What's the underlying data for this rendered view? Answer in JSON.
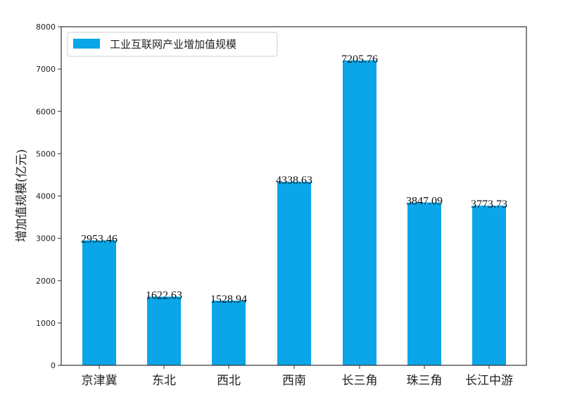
{
  "chart_data": {
    "type": "bar",
    "title": "",
    "xlabel": "",
    "ylabel": "增加值规模(亿元)",
    "categories": [
      "京津冀",
      "东北",
      "西北",
      "西南",
      "长三角",
      "珠三角",
      "长江中游"
    ],
    "values": [
      2953.46,
      1622.63,
      1528.94,
      4338.63,
      7205.76,
      3847.09,
      3773.73
    ],
    "value_labels": [
      "2953.46",
      "1622.63",
      "1528.94",
      "4338.63",
      "7205.76",
      "3847.09",
      "3773.73"
    ],
    "series": [
      {
        "name": "工业互联网产业增加值规模",
        "values": [
          2953.46,
          1622.63,
          1528.94,
          4338.63,
          7205.76,
          3847.09,
          3773.73
        ],
        "color": "#0aa6e8"
      }
    ],
    "ylim": [
      0,
      8000
    ],
    "yticks": [
      0,
      1000,
      2000,
      3000,
      4000,
      5000,
      6000,
      7000,
      8000
    ],
    "ytick_labels": [
      "0",
      "1000",
      "2000",
      "3000",
      "4000",
      "5000",
      "6000",
      "7000",
      "8000"
    ],
    "grid": false,
    "legend_position": "upper left"
  },
  "legend": {
    "label": "工业互联网产业增加值规模",
    "color": "#0aa6e8"
  },
  "colors": {
    "bar": "#0aa6e8",
    "axis": "#333333",
    "text": "#222222"
  }
}
